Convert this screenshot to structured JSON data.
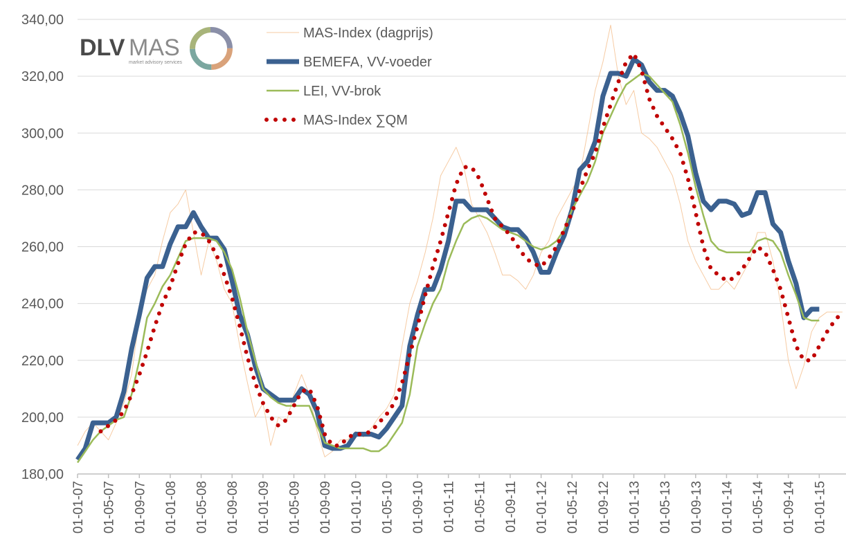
{
  "logo": {
    "name1": "DLV",
    "name2": "MAS",
    "tagline": "market advisory services"
  },
  "chart_data": {
    "type": "line",
    "categories": [
      "01-01-07",
      null,
      null,
      null,
      "01-05-07",
      null,
      null,
      null,
      "01-09-07",
      null,
      null,
      null,
      "01-01-08",
      null,
      null,
      null,
      "01-05-08",
      null,
      null,
      null,
      "01-09-08",
      null,
      null,
      null,
      "01-01-09",
      null,
      null,
      null,
      "01-05-09",
      null,
      null,
      null,
      "01-09-09",
      null,
      null,
      null,
      "01-01-10",
      null,
      null,
      null,
      "01-05-10",
      null,
      null,
      null,
      "01-09-10",
      null,
      null,
      null,
      "01-01-11",
      null,
      null,
      null,
      "01-05-11",
      null,
      null,
      null,
      "01-09-11",
      null,
      null,
      null,
      "01-01-12",
      null,
      null,
      null,
      "01-05-12",
      null,
      null,
      null,
      "01-09-12",
      null,
      null,
      null,
      "01-01-13",
      null,
      null,
      null,
      "01-05-13",
      null,
      null,
      null,
      "01-09-13",
      null,
      null,
      null,
      "01-01-14",
      null,
      null,
      null,
      "01-05-14",
      null,
      null,
      null,
      "01-09-14",
      null,
      null,
      null,
      "01-01-15",
      null,
      null,
      null
    ],
    "series": [
      {
        "name": "MAS-Index (dagprijs)",
        "color": "#f6cba3",
        "values": [
          190,
          195,
          198,
          195,
          192,
          198,
          205,
          215,
          235,
          245,
          250,
          262,
          272,
          275,
          280,
          265,
          250,
          262,
          255,
          245,
          240,
          225,
          212,
          200,
          205,
          190,
          200,
          198,
          208,
          215,
          208,
          195,
          186,
          188,
          192,
          192,
          195,
          193,
          196,
          200,
          203,
          208,
          225,
          240,
          248,
          258,
          270,
          285,
          290,
          295,
          288,
          275,
          270,
          265,
          258,
          250,
          250,
          248,
          245,
          250,
          258,
          262,
          270,
          275,
          280,
          285,
          300,
          315,
          325,
          338,
          320,
          310,
          315,
          300,
          298,
          295,
          290,
          285,
          275,
          262,
          255,
          250,
          245,
          245,
          248,
          245,
          250,
          255,
          265,
          265,
          255,
          240,
          220,
          210,
          218,
          230,
          235,
          237,
          237,
          237
        ]
      },
      {
        "name": "BEMEFA, VV-voeder",
        "color": "#3b6190",
        "values": [
          185,
          189,
          198,
          198,
          198,
          200,
          209,
          224,
          236,
          249,
          253,
          253,
          261,
          267,
          267,
          272,
          267,
          263,
          263,
          259,
          248,
          236,
          229,
          218,
          210,
          208,
          206,
          206,
          206,
          210,
          208,
          202,
          190,
          189,
          189,
          190,
          194,
          194,
          194,
          193,
          196,
          200,
          204,
          225,
          236,
          245,
          245,
          252,
          262,
          276,
          276,
          273,
          273,
          273,
          270,
          267,
          266,
          266,
          263,
          258,
          251,
          251,
          258,
          264,
          273,
          287,
          290,
          297,
          313,
          321,
          321,
          320,
          326,
          324,
          318,
          315,
          315,
          313,
          307,
          299,
          286,
          276,
          273,
          276,
          276,
          275,
          271,
          272,
          279,
          279,
          268,
          265,
          255,
          247,
          235,
          238,
          238,
          null,
          null,
          null
        ]
      },
      {
        "name": "LEI, VV-brok",
        "color": "#9bbb59",
        "values": [
          184,
          188,
          192,
          195,
          197,
          199,
          200,
          208,
          220,
          235,
          240,
          246,
          250,
          256,
          262,
          263,
          263,
          263,
          262,
          258,
          252,
          242,
          230,
          220,
          210,
          207,
          205,
          204,
          204,
          204,
          204,
          197,
          191,
          190,
          189,
          189,
          189,
          189,
          188,
          188,
          190,
          194,
          198,
          208,
          225,
          233,
          240,
          245,
          255,
          262,
          268,
          270,
          271,
          270,
          268,
          266,
          265,
          264,
          262,
          260,
          259,
          260,
          262,
          266,
          273,
          278,
          283,
          290,
          300,
          306,
          312,
          317,
          319,
          321,
          320,
          317,
          314,
          311,
          303,
          293,
          281,
          271,
          262,
          259,
          258,
          258,
          258,
          258,
          262,
          263,
          262,
          258,
          250,
          243,
          235,
          234,
          234,
          null,
          null,
          null
        ]
      },
      {
        "name": "MAS-Index ∑QM",
        "color": "#c00000",
        "values": [
          null,
          null,
          null,
          195,
          197,
          199,
          202,
          208,
          215,
          223,
          232,
          240,
          246,
          254,
          261,
          265,
          265,
          262,
          257,
          250,
          242,
          232,
          221,
          212,
          205,
          200,
          197,
          199,
          204,
          209,
          210,
          204,
          194,
          190,
          190,
          193,
          194,
          194,
          195,
          198,
          201,
          205,
          212,
          222,
          232,
          243,
          253,
          262,
          272,
          282,
          288,
          288,
          284,
          277,
          270,
          267,
          264,
          260,
          256,
          254,
          253,
          256,
          260,
          266,
          272,
          280,
          287,
          293,
          302,
          310,
          318,
          325,
          328,
          322,
          312,
          306,
          302,
          298,
          293,
          284,
          272,
          260,
          252,
          250,
          248,
          249,
          252,
          256,
          260,
          258,
          252,
          245,
          235,
          225,
          220,
          220,
          225,
          230,
          234,
          237
        ]
      }
    ],
    "ylim": [
      180,
      340
    ],
    "yticks": [
      {
        "value": 180,
        "label": "180,00"
      },
      {
        "value": 200,
        "label": "200,00"
      },
      {
        "value": 220,
        "label": "220,00"
      },
      {
        "value": 240,
        "label": "240,00"
      },
      {
        "value": 260,
        "label": "260,00"
      },
      {
        "value": 280,
        "label": "280,00"
      },
      {
        "value": 300,
        "label": "300,00"
      },
      {
        "value": 320,
        "label": "320,00"
      },
      {
        "value": 340,
        "label": "340,00"
      }
    ],
    "grid": true,
    "legend": "top"
  }
}
